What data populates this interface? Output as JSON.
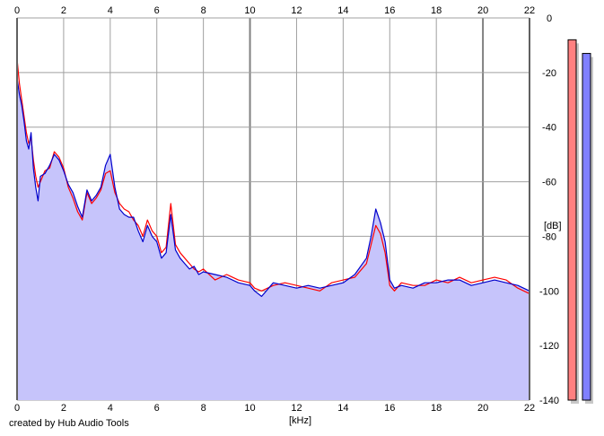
{
  "app": {
    "credit": "created by Hub Audio Tools"
  },
  "chart_data": {
    "type": "line",
    "title": "",
    "xlabel": "[kHz]",
    "ylabel": "[dB]",
    "xlim": [
      0,
      22
    ],
    "ylim": [
      -140,
      0
    ],
    "x_ticks": [
      "0",
      "2",
      "4",
      "6",
      "8",
      "10",
      "12",
      "14",
      "16",
      "18",
      "20",
      "22"
    ],
    "y_ticks": [
      "0",
      "-20",
      "-40",
      "-60",
      "-80",
      "-100",
      "-120",
      "-140"
    ],
    "grid": true,
    "colors": {
      "fill": "#c6c4fb",
      "red": "#ff0000",
      "blue": "#0000cc",
      "grid": "#a0a0a0",
      "grid_major": "#808080"
    },
    "series": [
      {
        "color": "#0000cc",
        "x": [
          0,
          0.1,
          0.2,
          0.3,
          0.4,
          0.5,
          0.6,
          0.7,
          0.8,
          0.9,
          1.0,
          1.2,
          1.4,
          1.6,
          1.8,
          2.0,
          2.2,
          2.4,
          2.6,
          2.8,
          3.0,
          3.2,
          3.4,
          3.6,
          3.8,
          4.0,
          4.2,
          4.4,
          4.6,
          4.8,
          5.0,
          5.2,
          5.4,
          5.6,
          5.8,
          6.0,
          6.2,
          6.4,
          6.6,
          6.8,
          7.0,
          7.2,
          7.4,
          7.6,
          7.8,
          8.0,
          8.5,
          9.0,
          9.5,
          10.0,
          10.2,
          10.5,
          11.0,
          11.5,
          12.0,
          12.5,
          13.0,
          13.5,
          14.0,
          14.5,
          15.0,
          15.2,
          15.4,
          15.6,
          15.8,
          16.0,
          16.2,
          16.5,
          17.0,
          17.5,
          18.0,
          18.5,
          19.0,
          19.5,
          20.0,
          20.5,
          21.0,
          21.5,
          22.0
        ],
        "y": [
          -22,
          -28,
          -32,
          -38,
          -45,
          -48,
          -42,
          -55,
          -62,
          -67,
          -58,
          -57,
          -54,
          -50,
          -52,
          -56,
          -61,
          -64,
          -69,
          -73,
          -63,
          -67,
          -65,
          -62,
          -54,
          -50,
          -62,
          -70,
          -72,
          -73,
          -73,
          -78,
          -82,
          -76,
          -80,
          -82,
          -88,
          -86,
          -72,
          -85,
          -88,
          -90,
          -92,
          -91,
          -94,
          -93,
          -94,
          -95,
          -97,
          -98,
          -100,
          -102,
          -97,
          -98,
          -99,
          -98,
          -99,
          -98,
          -97,
          -94,
          -88,
          -80,
          -70,
          -75,
          -82,
          -96,
          -99,
          -98,
          -99,
          -97,
          -97,
          -96,
          -96,
          -98,
          -97,
          -96,
          -97,
          -98,
          -100
        ]
      },
      {
        "color": "#ff0000",
        "x": [
          0,
          0.1,
          0.2,
          0.3,
          0.4,
          0.5,
          0.6,
          0.7,
          0.8,
          0.9,
          1.0,
          1.2,
          1.4,
          1.6,
          1.8,
          2.0,
          2.2,
          2.4,
          2.6,
          2.8,
          3.0,
          3.2,
          3.4,
          3.6,
          3.8,
          4.0,
          4.2,
          4.4,
          4.6,
          4.8,
          5.0,
          5.2,
          5.4,
          5.6,
          5.8,
          6.0,
          6.2,
          6.4,
          6.6,
          6.8,
          7.0,
          7.2,
          7.4,
          7.6,
          7.8,
          8.0,
          8.5,
          9.0,
          9.5,
          10.0,
          10.2,
          10.5,
          11.0,
          11.5,
          12.0,
          12.5,
          13.0,
          13.5,
          14.0,
          14.5,
          15.0,
          15.2,
          15.4,
          15.6,
          15.8,
          16.0,
          16.2,
          16.5,
          17.0,
          17.5,
          18.0,
          18.5,
          19.0,
          19.5,
          20.0,
          20.5,
          21.0,
          21.5,
          22.0
        ],
        "y": [
          -15,
          -24,
          -30,
          -36,
          -42,
          -46,
          -44,
          -52,
          -58,
          -62,
          -60,
          -56,
          -55,
          -49,
          -51,
          -55,
          -62,
          -66,
          -71,
          -74,
          -64,
          -68,
          -66,
          -63,
          -57,
          -56,
          -64,
          -68,
          -70,
          -71,
          -74,
          -76,
          -80,
          -74,
          -78,
          -80,
          -86,
          -84,
          -68,
          -83,
          -86,
          -88,
          -90,
          -92,
          -93,
          -92,
          -96,
          -94,
          -96,
          -97,
          -99,
          -100,
          -98,
          -97,
          -98,
          -99,
          -100,
          -97,
          -96,
          -95,
          -90,
          -83,
          -76,
          -79,
          -86,
          -98,
          -100,
          -97,
          -98,
          -98,
          -96,
          -97,
          -95,
          -97,
          -96,
          -95,
          -96,
          -99,
          -101
        ]
      }
    ],
    "level_meters": [
      {
        "channel": "red",
        "value_db": -8,
        "color": "#ff8080"
      },
      {
        "channel": "blue",
        "value_db": -13,
        "color": "#8080ff"
      }
    ]
  }
}
